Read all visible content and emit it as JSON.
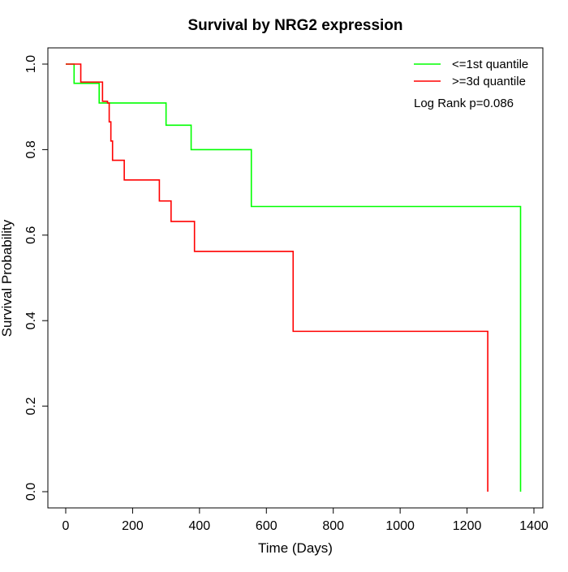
{
  "chart_data": {
    "type": "line",
    "title": "Survival by NRG2 expression",
    "xlabel": "Time (Days)",
    "ylabel": "Survival Probability",
    "xlim": [
      0,
      1400
    ],
    "ylim": [
      0,
      1
    ],
    "x_ticks": [
      "0",
      "200",
      "400",
      "600",
      "800",
      "1000",
      "1200",
      "1400"
    ],
    "y_ticks": [
      "0.0",
      "0.2",
      "0.4",
      "0.6",
      "0.8",
      "1.0"
    ],
    "grid": false,
    "legend_position": "top-right",
    "annotation": "Log Rank p=0.086",
    "series": [
      {
        "name": "<=1st quantile",
        "color": "#00ff00",
        "step": "post",
        "x": [
          0,
          25,
          100,
          300,
          375,
          555,
          1360,
          1360
        ],
        "y": [
          1.0,
          0.955,
          0.909,
          0.857,
          0.8,
          0.667,
          0.667,
          0.0
        ]
      },
      {
        "name": ">=3d quantile",
        "color": "#ff0000",
        "step": "post",
        "x": [
          0,
          45,
          110,
          125,
          130,
          135,
          140,
          175,
          280,
          315,
          385,
          680,
          1262,
          1262
        ],
        "y": [
          1.0,
          0.958,
          0.913,
          0.909,
          0.865,
          0.82,
          0.775,
          0.729,
          0.68,
          0.632,
          0.562,
          0.375,
          0.375,
          0.0
        ]
      }
    ]
  }
}
